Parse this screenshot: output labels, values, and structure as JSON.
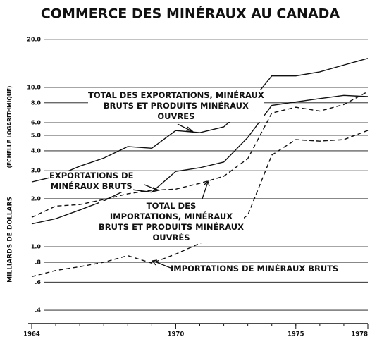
{
  "chart_data": {
    "type": "line",
    "title": "COMMERCE DES MINÉRAUX AU CANADA",
    "y_label": "MILLIARDS DE DOLLARS",
    "y_label_note": "(ÉCHELLE LOGARITHMIQUE)",
    "x": [
      1964,
      1965,
      1966,
      1967,
      1968,
      1969,
      1970,
      1971,
      1972,
      1973,
      1974,
      1975,
      1976,
      1977,
      1978
    ],
    "xlim": [
      1964,
      1978
    ],
    "xticks": [
      1964,
      1970,
      1975,
      1978
    ],
    "ylim": [
      0.33,
      21
    ],
    "log_scale": true,
    "grid": true,
    "yticks": [
      {
        "value": 20,
        "label": "20.0"
      },
      {
        "value": 10,
        "label": "10.0"
      },
      {
        "value": 8,
        "label": "8.0"
      },
      {
        "value": 6,
        "label": "6.0"
      },
      {
        "value": 5,
        "label": "5.0"
      },
      {
        "value": 4,
        "label": "4.0"
      },
      {
        "value": 3,
        "label": "3.0"
      },
      {
        "value": 2,
        "label": "2.0"
      },
      {
        "value": 1,
        "label": "1.0"
      },
      {
        "value": 0.8,
        "label": ".8"
      },
      {
        "value": 0.6,
        "label": ".6"
      },
      {
        "value": 0.4,
        "label": ".4"
      }
    ],
    "series": [
      {
        "name": "TOTAL DES EXPORTATIONS, MINÉRAUX\nBRUTS ET PRODUITS MINÉRAUX\nOUVRES",
        "color": "#111",
        "style": "solid",
        "values": [
          2.55,
          2.77,
          3.2,
          3.6,
          4.25,
          4.15,
          5.36,
          5.2,
          5.65,
          7.7,
          11.8,
          11.8,
          12.5,
          13.8,
          15.2
        ]
      },
      {
        "name": "EXPORTATIONS DE\nMINÉRAUX BRUTS",
        "color": "#111",
        "style": "solid",
        "values": [
          1.39,
          1.5,
          1.7,
          1.94,
          2.3,
          2.2,
          2.97,
          3.13,
          3.4,
          4.85,
          7.7,
          8.1,
          8.5,
          8.9,
          8.75
        ]
      },
      {
        "name": "TOTAL DES\nIMPORTATIONS, MINÉRAUX\nBRUTS ET PRODUITS MINÉRAUX\nOUVRÉS",
        "color": "#111",
        "style": "dashed",
        "values": [
          1.53,
          1.8,
          1.84,
          1.98,
          2.15,
          2.26,
          2.3,
          2.5,
          2.77,
          3.57,
          6.9,
          7.5,
          7.1,
          7.8,
          9.4
        ]
      },
      {
        "name": "IMPORTATIONS DE MINÉRAUX BRUTS",
        "color": "#111",
        "style": "dashed",
        "values": [
          0.65,
          0.71,
          0.75,
          0.8,
          0.88,
          0.79,
          0.9,
          1.05,
          1.23,
          1.58,
          3.76,
          4.7,
          4.6,
          4.7,
          5.37
        ]
      }
    ]
  }
}
